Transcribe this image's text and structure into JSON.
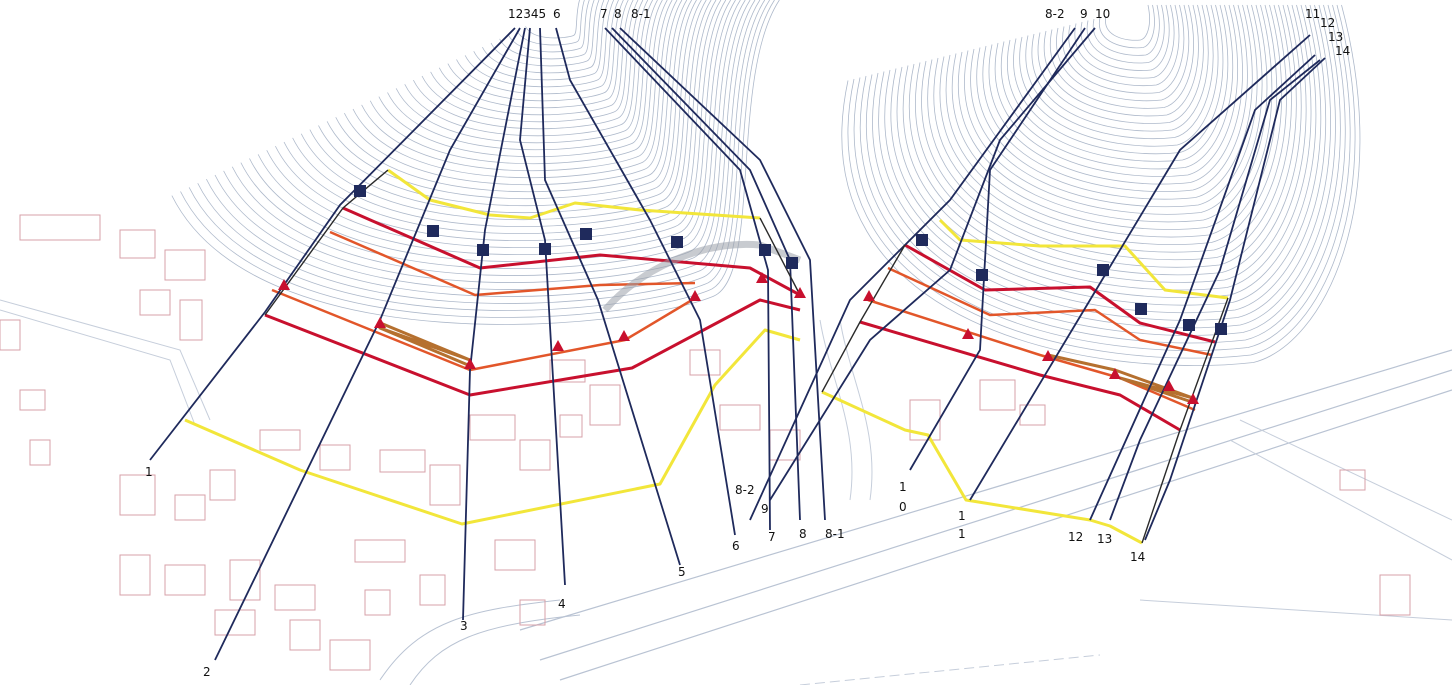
{
  "colors": {
    "contour": "#9aa8be",
    "section_line": "#1f2a5c",
    "yellow_zone": "#f2e63a",
    "red_zone": "#c8102e",
    "orange_zone": "#e2562a",
    "brown_zone": "#b5702f",
    "marker_square": "#1f2a5c",
    "marker_triangle": "#c8102e",
    "building": "#d7a0a8",
    "road": "#b9c3d3"
  },
  "top_labels": {
    "l1": "12345",
    "l6": "6",
    "l7": "7",
    "l8": "8",
    "l81": "8-1",
    "l82": "8-2",
    "l9": "9",
    "l10": "10",
    "l11": "11",
    "l12": "12",
    "l13": "13",
    "l14": "14"
  },
  "bottom_labels": {
    "l1": "1",
    "l2": "2",
    "l3": "3",
    "l4": "4",
    "l5": "5",
    "l6": "6",
    "l7": "7",
    "l8": "8",
    "l81": "8-1",
    "l82": "8-2",
    "l9": "9",
    "l10a": "1",
    "l10b": "0",
    "l11a": "1",
    "l11b": "1",
    "l12": "12",
    "l13": "13",
    "l14": "14"
  },
  "icons": {
    "marker_square": "control-point-square-icon",
    "marker_triangle": "survey-triangle-icon"
  }
}
